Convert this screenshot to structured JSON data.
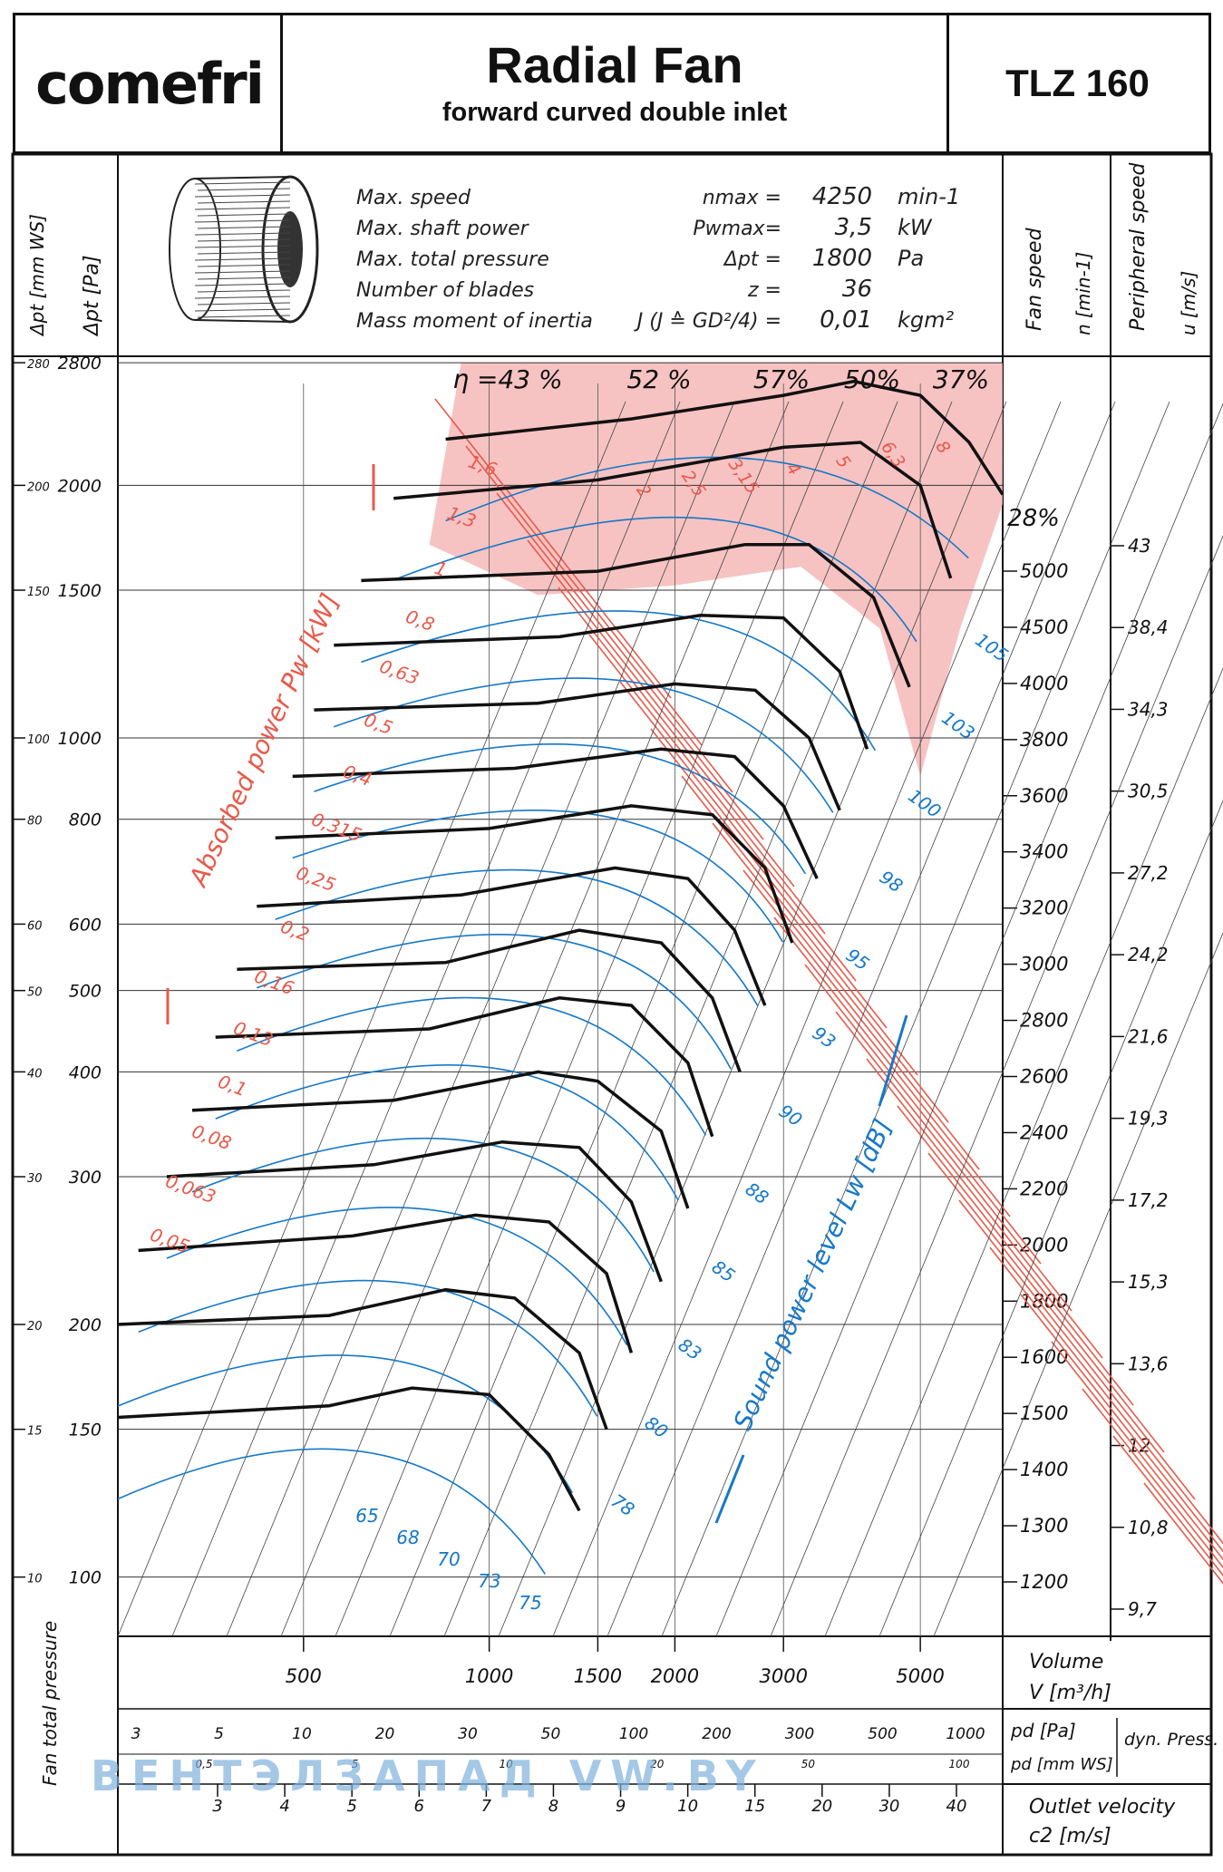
{
  "header": {
    "logo": "comefri",
    "title": "Radial Fan",
    "subtitle": "forward curved double inlet",
    "model": "TLZ 160"
  },
  "specs": [
    {
      "label": "Max. speed",
      "symbol": "nmax =",
      "value": "4250",
      "unit": "min-1"
    },
    {
      "label": "Max. shaft power",
      "symbol": "Pwmax=",
      "value": "3,5",
      "unit": "kW"
    },
    {
      "label": "Max. total pressure",
      "symbol": "Δpt =",
      "value": "1800",
      "unit": "Pa"
    },
    {
      "label": "Number of blades",
      "symbol": "z =",
      "value": "36",
      "unit": ""
    },
    {
      "label": "Mass moment of inertia",
      "symbol": "J (J ≙ GD²/4) =",
      "value": "0,01",
      "unit": "kgm²"
    }
  ],
  "axis_titles": {
    "left_mmws": "Δpt [mm WS]",
    "left_pa": "Δpt [Pa]",
    "fan_speed": "Fan speed",
    "fan_speed_unit": "n [min-1]",
    "peripheral_speed": "Peripheral speed",
    "peripheral_speed_unit": "u [m/s]",
    "volume": "Volume",
    "volume_unit": "V [m³/h]",
    "dyn_pa": "pd [Pa]",
    "dyn_mmws": "pd [mm WS]",
    "dyn_label": "dyn. Press.",
    "outlet_velocity": "Outlet velocity",
    "outlet_unit": "c2 [m/s]",
    "fan_total_pressure": "Fan total pressure",
    "absorbed_power": "Absorbed power Pw [kW]",
    "sound_power": "Sound power level Lw [dB]"
  },
  "watermark": "ВЕНТЭЛЗАПАД   VW.BY",
  "colors": {
    "red": "#e8594a",
    "blue": "#1578c8",
    "zone": "#f4b3b3",
    "ink": "#111111"
  },
  "chart_data": {
    "type": "line",
    "title": "Radial Fan TLZ 160",
    "x_scale": "log",
    "y_scale": "log",
    "xlim": [
      250,
      6800
    ],
    "ylim": [
      85,
      2850
    ],
    "pressure_ticks_pa": [
      "2800",
      "2000",
      "1500",
      "1000",
      "800",
      "600",
      "500",
      "400",
      "300",
      "200",
      "150",
      "100"
    ],
    "pressure_ticks_mmws": [
      "280",
      "200",
      "150",
      "100",
      "80",
      "60",
      "50",
      "40",
      "30",
      "20",
      "15",
      "10"
    ],
    "volume_ticks": [
      "500",
      "1000",
      "1500",
      "2000",
      "3000",
      "5000"
    ],
    "speed_ticks": [
      "5000",
      "4500",
      "4000",
      "3800",
      "3600",
      "3400",
      "3200",
      "3000",
      "2800",
      "2600",
      "2400",
      "2200",
      "2000",
      "1800",
      "1600",
      "1500",
      "1400",
      "1300",
      "1200"
    ],
    "peripheral_ticks": [
      "43",
      "38,4",
      "34,3",
      "30,5",
      "27,2",
      "24,2",
      "21,6",
      "19,3",
      "17,2",
      "15,3",
      "13,6",
      "12",
      "10,8",
      "9,7"
    ],
    "dyn_pa_ticks": [
      "3",
      "5",
      "10",
      "20",
      "30",
      "50",
      "100",
      "200",
      "300",
      "500",
      "1000"
    ],
    "dyn_mmws_ticks": [
      "0,5",
      "5",
      "10",
      "20",
      "50",
      "100"
    ],
    "velocity_ticks": [
      "3",
      "4",
      "5",
      "6",
      "7",
      "8",
      "9",
      "10",
      "15",
      "20",
      "30",
      "40"
    ],
    "efficiency_labels": [
      "η =43 %",
      "52 %",
      "57%",
      "50%",
      "37%",
      "28%"
    ],
    "power_labels": [
      "1,6",
      "1,3",
      "1",
      "0,8",
      "0,63",
      "0,5",
      "0,4",
      "0,315",
      "0,25",
      "0,2",
      "0,16",
      "0,13",
      "0,1",
      "0,08",
      "0,063",
      "0,05",
      "2",
      "2,5",
      "3,15",
      "4",
      "5",
      "6,3",
      "8"
    ],
    "sound_labels": [
      "105",
      "103",
      "100",
      "98",
      "95",
      "93",
      "90",
      "88",
      "85",
      "83",
      "80",
      "78",
      "75",
      "73",
      "70",
      "68",
      "65"
    ],
    "speed_curves": [
      {
        "n": 4250,
        "points": [
          [
            850,
            2270
          ],
          [
            1700,
            2400
          ],
          [
            3000,
            2560
          ],
          [
            3900,
            2660
          ],
          [
            5000,
            2560
          ],
          [
            6000,
            2250
          ],
          [
            6800,
            1950
          ]
        ]
      },
      {
        "n": 4000,
        "points": [
          [
            700,
            1930
          ],
          [
            1500,
            2030
          ],
          [
            3000,
            2220
          ],
          [
            4000,
            2250
          ],
          [
            5000,
            2000
          ],
          [
            5600,
            1550
          ]
        ]
      },
      {
        "n": 3600,
        "points": [
          [
            620,
            1540
          ],
          [
            1500,
            1580
          ],
          [
            2600,
            1700
          ],
          [
            3300,
            1700
          ],
          [
            4200,
            1470
          ],
          [
            4800,
            1150
          ]
        ]
      },
      {
        "n": 3300,
        "points": [
          [
            560,
            1290
          ],
          [
            1300,
            1320
          ],
          [
            2200,
            1400
          ],
          [
            3000,
            1390
          ],
          [
            3700,
            1200
          ],
          [
            4100,
            970
          ]
        ]
      },
      {
        "n": 3000,
        "points": [
          [
            520,
            1080
          ],
          [
            1200,
            1100
          ],
          [
            2000,
            1160
          ],
          [
            2700,
            1140
          ],
          [
            3300,
            1000
          ],
          [
            3700,
            820
          ]
        ]
      },
      {
        "n": 2700,
        "points": [
          [
            480,
            900
          ],
          [
            1100,
            920
          ],
          [
            1900,
            970
          ],
          [
            2500,
            950
          ],
          [
            3000,
            830
          ],
          [
            3400,
            680
          ]
        ]
      },
      {
        "n": 2500,
        "points": [
          [
            450,
            760
          ],
          [
            1000,
            780
          ],
          [
            1700,
            830
          ],
          [
            2300,
            810
          ],
          [
            2800,
            700
          ],
          [
            3100,
            570
          ]
        ]
      },
      {
        "n": 2300,
        "points": [
          [
            420,
            630
          ],
          [
            900,
            650
          ],
          [
            1600,
            700
          ],
          [
            2100,
            680
          ],
          [
            2500,
            590
          ],
          [
            2800,
            480
          ]
        ]
      },
      {
        "n": 2100,
        "points": [
          [
            390,
            530
          ],
          [
            850,
            540
          ],
          [
            1400,
            590
          ],
          [
            1900,
            570
          ],
          [
            2300,
            490
          ],
          [
            2550,
            400
          ]
        ]
      },
      {
        "n": 1900,
        "points": [
          [
            360,
            440
          ],
          [
            800,
            450
          ],
          [
            1300,
            490
          ],
          [
            1700,
            480
          ],
          [
            2100,
            410
          ],
          [
            2300,
            335
          ]
        ]
      },
      {
        "n": 1700,
        "points": [
          [
            330,
            360
          ],
          [
            700,
            370
          ],
          [
            1200,
            400
          ],
          [
            1500,
            390
          ],
          [
            1900,
            340
          ],
          [
            2100,
            275
          ]
        ]
      },
      {
        "n": 1550,
        "points": [
          [
            300,
            300
          ],
          [
            650,
            310
          ],
          [
            1050,
            330
          ],
          [
            1400,
            325
          ],
          [
            1700,
            280
          ],
          [
            1900,
            225
          ]
        ]
      },
      {
        "n": 1400,
        "points": [
          [
            270,
            245
          ],
          [
            600,
            255
          ],
          [
            950,
            270
          ],
          [
            1250,
            265
          ],
          [
            1550,
            230
          ],
          [
            1700,
            185
          ]
        ]
      },
      {
        "n": 1250,
        "points": [
          [
            250,
            200
          ],
          [
            550,
            205
          ],
          [
            850,
            220
          ],
          [
            1100,
            215
          ],
          [
            1400,
            185
          ],
          [
            1550,
            150
          ]
        ]
      },
      {
        "n": 1100,
        "points": [
          [
            250,
            155
          ],
          [
            550,
            160
          ],
          [
            750,
            168
          ],
          [
            1000,
            165
          ],
          [
            1250,
            140
          ],
          [
            1400,
            120
          ]
        ]
      }
    ]
  }
}
